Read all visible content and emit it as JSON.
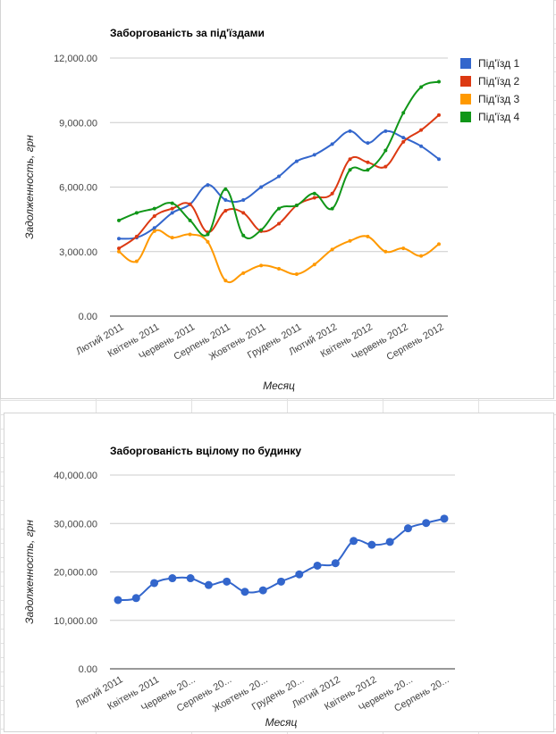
{
  "chart_data": [
    {
      "type": "line",
      "title": "Заборгованість за під'їздами",
      "xlabel": "Месяц",
      "ylabel": "Задолженность, грн",
      "ylim": [
        0,
        12000
      ],
      "yticks": [
        "0.00",
        "3,000.00",
        "6,000.00",
        "9,000.00",
        "12,000.00"
      ],
      "ytick_values": [
        0,
        3000,
        6000,
        9000,
        12000
      ],
      "categories": [
        "Лютий 2011",
        "",
        "Квітень 2011",
        "",
        "Червень 2011",
        "",
        "Серпень 2011",
        "",
        "Жовтень 2011",
        "",
        "Грудень 2011",
        "",
        "Лютий 2012",
        "",
        "Квітень 2012",
        "",
        "Червень 2012",
        "",
        "Серпень 2012"
      ],
      "legend_position": "right",
      "grid": true,
      "series": [
        {
          "name": "Під'їзд 1",
          "color": "#3366cc",
          "values": [
            3600,
            3650,
            4100,
            4800,
            5200,
            6100,
            5400,
            5400,
            6000,
            6500,
            7200,
            7500,
            8000,
            8600,
            8050,
            8600,
            8300,
            7900,
            7300
          ]
        },
        {
          "name": "Під'їзд 2",
          "color": "#dc3912",
          "values": [
            3150,
            3700,
            4650,
            5000,
            5200,
            3900,
            4900,
            4800,
            3950,
            4300,
            5150,
            5500,
            5700,
            7300,
            7150,
            6950,
            8100,
            8650,
            9350
          ]
        },
        {
          "name": "Під'їзд 3",
          "color": "#ff9900",
          "values": [
            3000,
            2550,
            3950,
            3650,
            3800,
            3450,
            1650,
            2000,
            2350,
            2200,
            1950,
            2400,
            3100,
            3500,
            3700,
            3000,
            3150,
            2800,
            3350
          ]
        },
        {
          "name": "Під'їзд 4",
          "color": "#109618",
          "values": [
            4450,
            4800,
            5000,
            5250,
            4450,
            3800,
            5900,
            3750,
            4000,
            5000,
            5150,
            5700,
            5000,
            6800,
            6800,
            7700,
            9450,
            10650,
            10900
          ]
        }
      ]
    },
    {
      "type": "line",
      "title": "Заборгованість вцілому по будинку",
      "xlabel": "Месяц",
      "ylabel": "Задолженность, грн",
      "ylim": [
        0,
        40000
      ],
      "yticks": [
        "0.00",
        "10,000.00",
        "20,000.00",
        "30,000.00",
        "40,000.00"
      ],
      "ytick_values": [
        0,
        10000,
        20000,
        30000,
        40000
      ],
      "categories": [
        "Лютий 2011",
        "",
        "Квітень 2011",
        "",
        "Червень 20...",
        "",
        "Серпень 20...",
        "",
        "Жовтень 20...",
        "",
        "Грудень 20...",
        "",
        "Лютий 2012",
        "",
        "Квітень 2012",
        "",
        "Червень 20...",
        "",
        "Серпень 20..."
      ],
      "grid": true,
      "series": [
        {
          "color": "#3366cc",
          "values": [
            14200,
            14600,
            17700,
            18700,
            18700,
            17300,
            18000,
            15900,
            16200,
            18000,
            19500,
            21300,
            21800,
            26400,
            25600,
            26200,
            29000,
            30100,
            31000
          ]
        }
      ]
    }
  ]
}
